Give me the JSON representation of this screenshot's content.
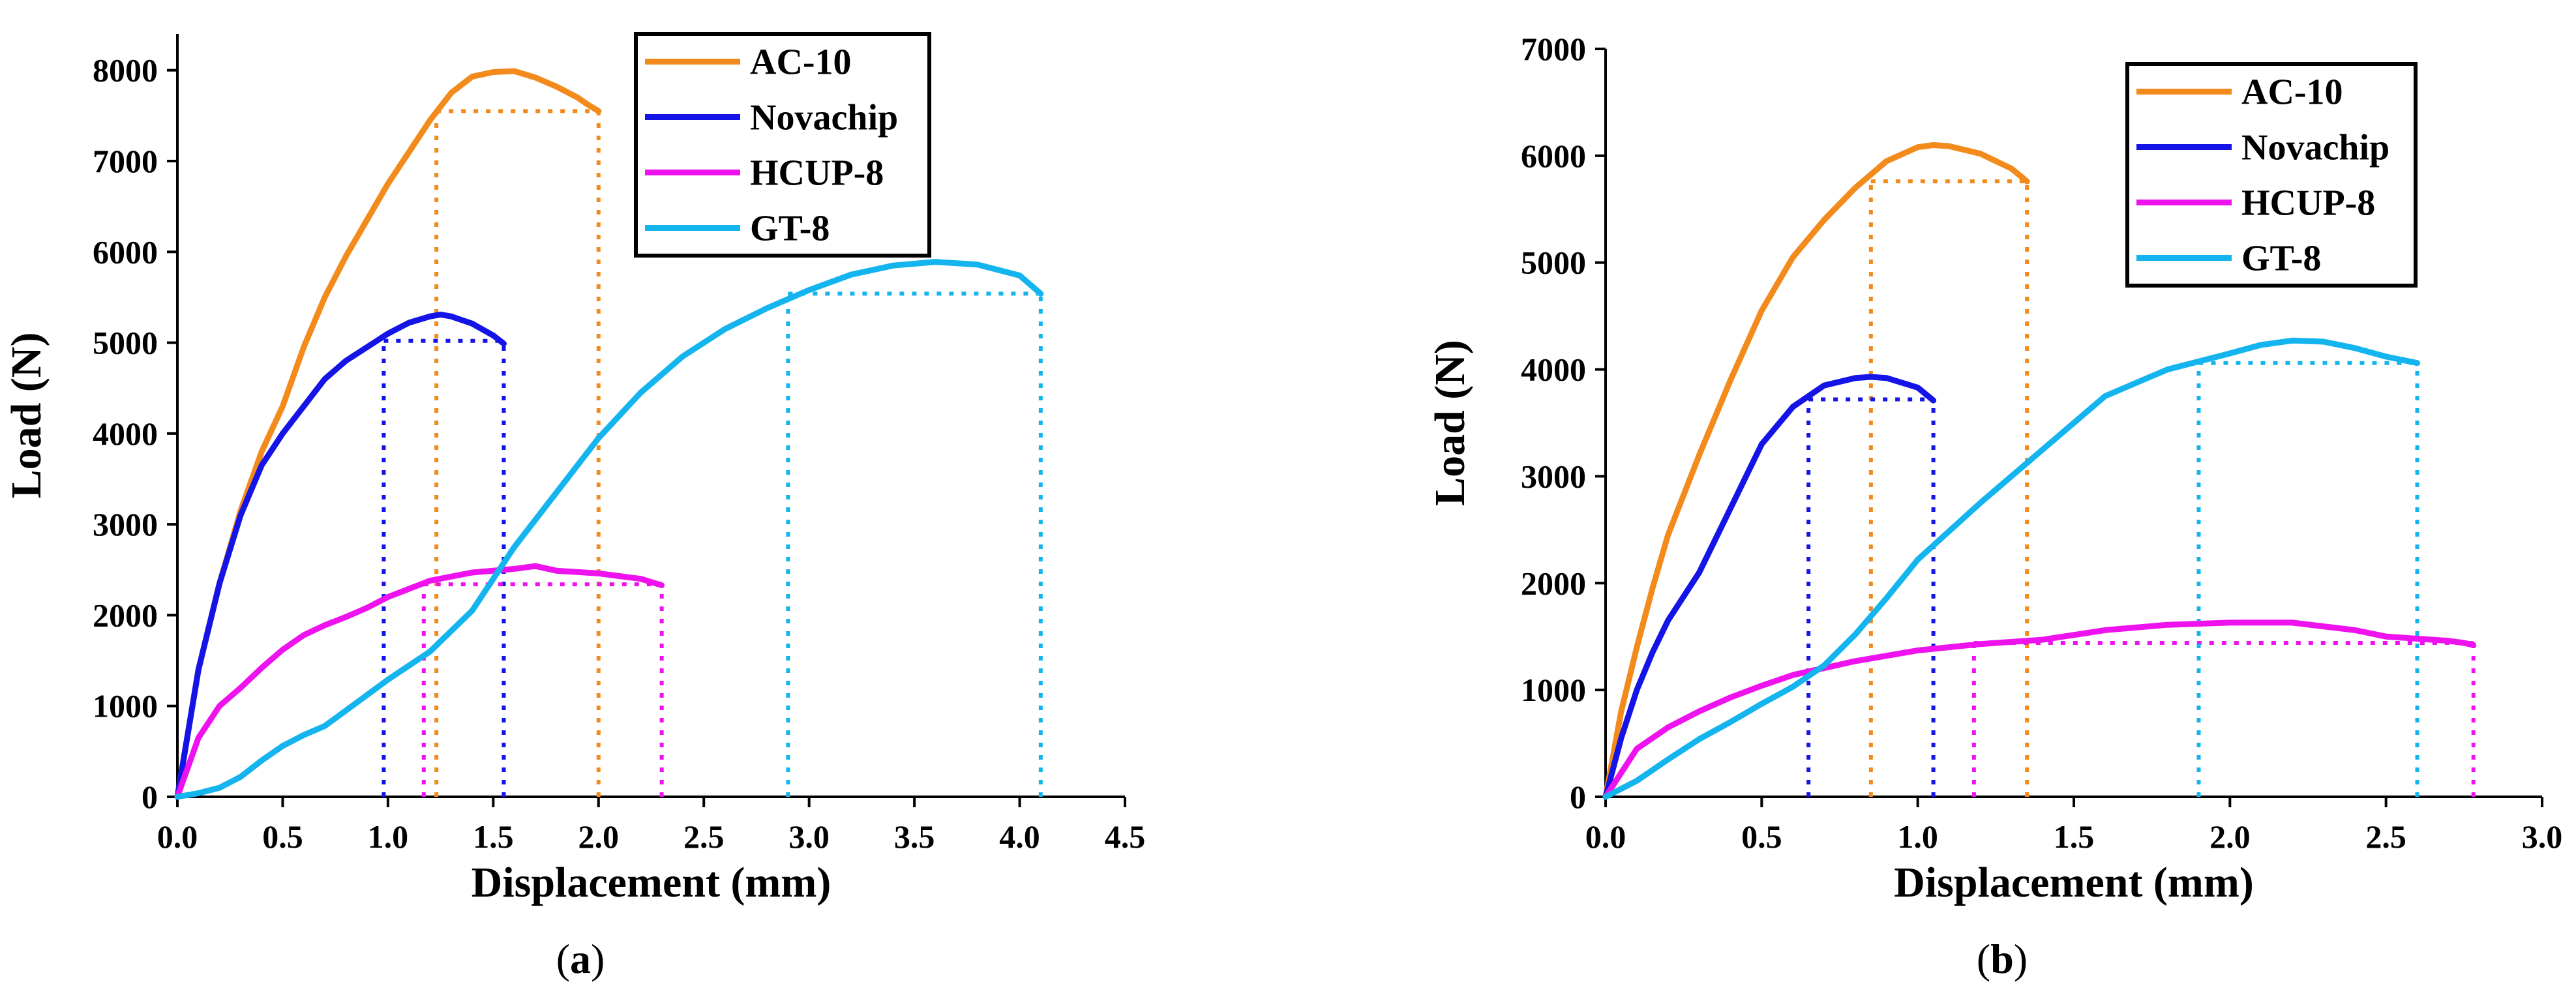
{
  "chart_data": [
    {
      "type": "line",
      "panel_label": "(a)",
      "panel_letter": "a",
      "xlabel": "Displacement (mm)",
      "ylabel": "Load (N)",
      "xlim": [
        0,
        4.5
      ],
      "ylim": [
        0,
        8400
      ],
      "xticks": [
        "0.0",
        "0.5",
        "1.0",
        "1.5",
        "2.0",
        "2.5",
        "3.0",
        "3.5",
        "4.0",
        "4.5"
      ],
      "xtick_values": [
        0,
        0.5,
        1,
        1.5,
        2,
        2.5,
        3,
        3.5,
        4,
        4.5
      ],
      "yticks": [
        "0",
        "1000",
        "2000",
        "3000",
        "4000",
        "5000",
        "6000",
        "7000",
        "8000"
      ],
      "ytick_values": [
        0,
        1000,
        2000,
        3000,
        4000,
        5000,
        6000,
        7000,
        8000
      ],
      "grid": false,
      "legend_position": "top-right",
      "series": [
        {
          "name": "AC-10",
          "color": "#f28a1c",
          "x": [
            0,
            0.1,
            0.2,
            0.3,
            0.4,
            0.5,
            0.6,
            0.7,
            0.8,
            0.9,
            1.0,
            1.1,
            1.2,
            1.3,
            1.4,
            1.5,
            1.6,
            1.7,
            1.8,
            1.9,
            1.95,
            2.0
          ],
          "y": [
            0,
            1400,
            2350,
            3150,
            3800,
            4300,
            4950,
            5500,
            5950,
            6350,
            6750,
            7100,
            7450,
            7750,
            7930,
            7980,
            7990,
            7920,
            7820,
            7700,
            7620,
            7550
          ],
          "threshold": {
            "x1": 1.23,
            "x2": 2.0,
            "y": 7550
          }
        },
        {
          "name": "Novachip",
          "color": "#1414e6",
          "x": [
            0,
            0.1,
            0.2,
            0.3,
            0.4,
            0.5,
            0.6,
            0.7,
            0.8,
            0.9,
            1.0,
            1.1,
            1.2,
            1.25,
            1.3,
            1.4,
            1.5,
            1.55
          ],
          "y": [
            0,
            1400,
            2350,
            3100,
            3650,
            4000,
            4300,
            4600,
            4800,
            4950,
            5100,
            5220,
            5290,
            5310,
            5290,
            5210,
            5080,
            4990
          ],
          "threshold": {
            "x1": 0.98,
            "x2": 1.55,
            "y": 5020
          }
        },
        {
          "name": "HCUP-8",
          "color": "#ee12ee",
          "x": [
            0,
            0.1,
            0.2,
            0.3,
            0.4,
            0.5,
            0.6,
            0.7,
            0.8,
            0.9,
            1.0,
            1.2,
            1.4,
            1.6,
            1.7,
            1.8,
            2.0,
            2.2,
            2.3
          ],
          "y": [
            0,
            650,
            1000,
            1200,
            1420,
            1620,
            1780,
            1890,
            1980,
            2080,
            2200,
            2380,
            2470,
            2510,
            2540,
            2490,
            2460,
            2400,
            2330
          ],
          "threshold": {
            "x1": 1.17,
            "x2": 2.3,
            "y": 2340
          }
        },
        {
          "name": "GT-8",
          "color": "#14b4ee",
          "x": [
            0,
            0.1,
            0.2,
            0.3,
            0.4,
            0.5,
            0.6,
            0.7,
            0.8,
            0.9,
            1.0,
            1.2,
            1.4,
            1.6,
            1.8,
            2.0,
            2.2,
            2.4,
            2.6,
            2.8,
            3.0,
            3.2,
            3.4,
            3.6,
            3.8,
            4.0,
            4.1
          ],
          "y": [
            0,
            40,
            100,
            220,
            400,
            560,
            680,
            780,
            950,
            1120,
            1290,
            1600,
            2050,
            2750,
            3350,
            3950,
            4450,
            4850,
            5150,
            5380,
            5580,
            5750,
            5850,
            5890,
            5860,
            5740,
            5540
          ],
          "threshold": {
            "x1": 2.9,
            "x2": 4.1,
            "y": 5540
          }
        }
      ]
    },
    {
      "type": "line",
      "panel_label": "(b)",
      "panel_letter": "b",
      "xlabel": "Displacement (mm)",
      "ylabel": "Load (N)",
      "xlim": [
        0,
        3.0
      ],
      "ylim": [
        0,
        7000
      ],
      "xticks": [
        "0.0",
        "0.5",
        "1.0",
        "1.5",
        "2.0",
        "2.5",
        "3.0"
      ],
      "xtick_values": [
        0,
        0.5,
        1,
        1.5,
        2,
        2.5,
        3
      ],
      "yticks": [
        "0",
        "1000",
        "2000",
        "3000",
        "4000",
        "5000",
        "6000",
        "7000"
      ],
      "ytick_values": [
        0,
        1000,
        2000,
        3000,
        4000,
        5000,
        6000,
        7000
      ],
      "grid": false,
      "legend_position": "top-right",
      "series": [
        {
          "name": "AC-10",
          "color": "#f28a1c",
          "x": [
            0,
            0.05,
            0.1,
            0.15,
            0.2,
            0.3,
            0.4,
            0.5,
            0.6,
            0.7,
            0.8,
            0.9,
            1.0,
            1.05,
            1.1,
            1.2,
            1.3,
            1.35
          ],
          "y": [
            0,
            800,
            1400,
            1950,
            2450,
            3200,
            3900,
            4550,
            5050,
            5400,
            5700,
            5950,
            6080,
            6100,
            6090,
            6020,
            5880,
            5760
          ],
          "threshold": {
            "x1": 0.85,
            "x2": 1.35,
            "y": 5760
          }
        },
        {
          "name": "Novachip",
          "color": "#1414e6",
          "x": [
            0,
            0.05,
            0.1,
            0.15,
            0.2,
            0.3,
            0.4,
            0.5,
            0.6,
            0.7,
            0.8,
            0.85,
            0.9,
            1.0,
            1.05
          ],
          "y": [
            0,
            550,
            1000,
            1350,
            1650,
            2100,
            2700,
            3300,
            3650,
            3850,
            3920,
            3930,
            3920,
            3830,
            3710
          ],
          "threshold": {
            "x1": 0.65,
            "x2": 1.05,
            "y": 3720
          }
        },
        {
          "name": "HCUP-8",
          "color": "#ee12ee",
          "x": [
            0,
            0.1,
            0.2,
            0.3,
            0.4,
            0.5,
            0.6,
            0.8,
            1.0,
            1.2,
            1.4,
            1.6,
            1.8,
            2.0,
            2.2,
            2.4,
            2.5,
            2.6,
            2.7,
            2.75,
            2.78
          ],
          "y": [
            0,
            450,
            650,
            800,
            930,
            1040,
            1140,
            1270,
            1370,
            1430,
            1470,
            1560,
            1610,
            1630,
            1630,
            1560,
            1500,
            1480,
            1460,
            1440,
            1420
          ],
          "threshold": {
            "x1": 1.18,
            "x2": 2.78,
            "y": 1440
          }
        },
        {
          "name": "GT-8",
          "color": "#14b4ee",
          "x": [
            0,
            0.1,
            0.2,
            0.3,
            0.4,
            0.5,
            0.6,
            0.7,
            0.8,
            0.9,
            1.0,
            1.2,
            1.4,
            1.6,
            1.8,
            2.0,
            2.1,
            2.2,
            2.3,
            2.4,
            2.5,
            2.6
          ],
          "y": [
            0,
            150,
            350,
            540,
            700,
            870,
            1030,
            1230,
            1520,
            1860,
            2220,
            2750,
            3250,
            3750,
            4000,
            4150,
            4230,
            4270,
            4260,
            4200,
            4120,
            4060
          ],
          "threshold": {
            "x1": 1.9,
            "x2": 2.6,
            "y": 4060
          }
        }
      ]
    }
  ]
}
